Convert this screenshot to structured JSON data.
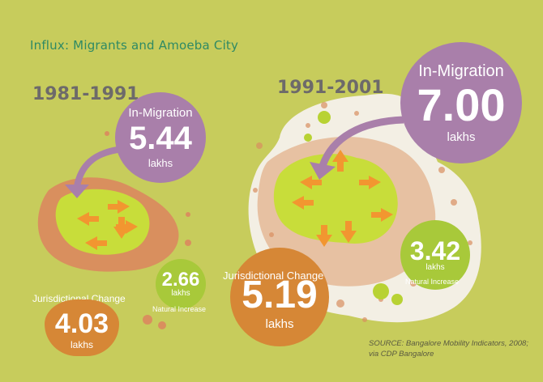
{
  "title": "Influx: Migrants and Amoeba City",
  "colors": {
    "background": "#c7cc5c",
    "purple": "#a97faa",
    "orange": "#d68736",
    "green": "#a8c93a",
    "title_green": "#2f8a64",
    "period_gray": "#6d6a6a"
  },
  "left": {
    "period": "1981-1991",
    "in_migration": {
      "label": "In-Migration",
      "value": "5.44",
      "unit": "lakhs"
    },
    "natural_increase": {
      "value": "2.66",
      "unit": "lakhs",
      "label": "Natural Increase"
    },
    "jurisdictional_change": {
      "label": "Jurisdictional Change",
      "value": "4.03",
      "unit": "lakhs"
    }
  },
  "right": {
    "period": "1991-2001",
    "in_migration": {
      "label": "In-Migration",
      "value": "7.00",
      "unit": "lakhs"
    },
    "natural_increase": {
      "value": "3.42",
      "unit": "lakhs",
      "label": "Natural Increase"
    },
    "jurisdictional_change": {
      "label": "Jurisdictional Change",
      "value": "5.19",
      "unit": "lakhs"
    }
  },
  "source": {
    "line1": "SOURCE: Bangalore Mobility Indicators, 2008;",
    "line2": "via CDP Bangalore"
  }
}
